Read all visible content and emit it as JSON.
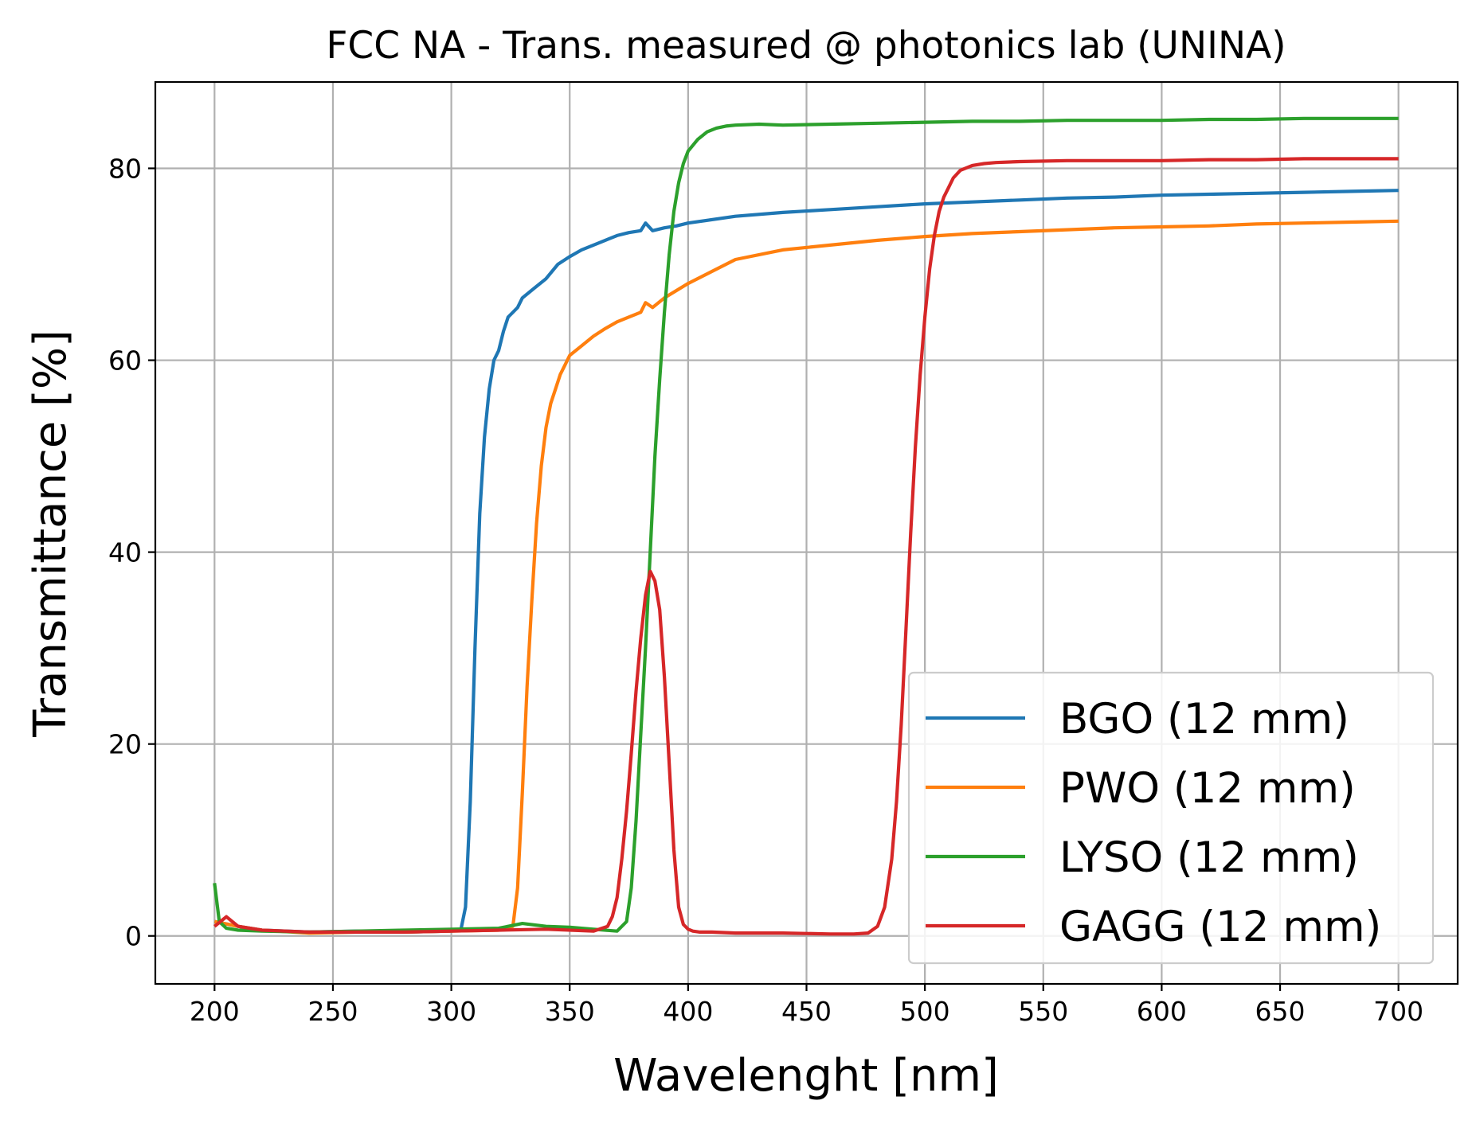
{
  "chart_data": {
    "type": "line",
    "title": "FCC NA - Trans. measured @ photonics lab (UNINA)",
    "xlabel": "Wavelenght [nm]",
    "ylabel": "Transmittance [%]",
    "xlim": [
      175,
      725
    ],
    "ylim": [
      -5,
      89
    ],
    "xticks": [
      200,
      250,
      300,
      350,
      400,
      450,
      500,
      550,
      600,
      650,
      700
    ],
    "yticks": [
      0,
      20,
      40,
      60,
      80
    ],
    "grid": true,
    "legend_position": "lower right",
    "series": [
      {
        "name": "BGO (12 mm)",
        "color": "#1f77b4",
        "x": [
          200,
          210,
          220,
          240,
          260,
          280,
          300,
          304,
          306,
          308,
          310,
          312,
          314,
          316,
          318,
          320,
          322,
          324,
          326,
          328,
          330,
          335,
          340,
          345,
          350,
          355,
          360,
          365,
          370,
          375,
          380,
          382,
          385,
          390,
          395,
          400,
          420,
          440,
          460,
          480,
          500,
          520,
          540,
          560,
          580,
          600,
          620,
          640,
          660,
          680,
          700
        ],
        "y": [
          1.5,
          1.0,
          0.6,
          0.4,
          0.5,
          0.4,
          0.5,
          0.6,
          3.0,
          14.0,
          30.0,
          44.0,
          52.0,
          57.0,
          60.0,
          61.0,
          63.0,
          64.5,
          65.0,
          65.5,
          66.5,
          67.5,
          68.5,
          70.0,
          70.8,
          71.5,
          72.0,
          72.5,
          73.0,
          73.3,
          73.5,
          74.3,
          73.5,
          73.8,
          74.0,
          74.3,
          75.0,
          75.4,
          75.7,
          76.0,
          76.3,
          76.5,
          76.7,
          76.9,
          77.0,
          77.2,
          77.3,
          77.4,
          77.5,
          77.6,
          77.7
        ]
      },
      {
        "name": "PWO (12 mm)",
        "color": "#ff7f0e",
        "x": [
          200,
          210,
          220,
          240,
          260,
          280,
          300,
          320,
          326,
          328,
          330,
          332,
          334,
          336,
          338,
          340,
          342,
          344,
          346,
          348,
          350,
          355,
          360,
          365,
          370,
          375,
          380,
          382,
          385,
          390,
          400,
          420,
          440,
          460,
          480,
          500,
          520,
          540,
          560,
          580,
          600,
          620,
          640,
          660,
          680,
          700
        ],
        "y": [
          1.5,
          1.0,
          0.6,
          0.3,
          0.4,
          0.4,
          0.5,
          0.6,
          1.0,
          5.0,
          15.0,
          26.0,
          35.0,
          43.0,
          49.0,
          53.0,
          55.5,
          57.0,
          58.5,
          59.5,
          60.5,
          61.5,
          62.5,
          63.3,
          64.0,
          64.5,
          65.0,
          66.0,
          65.5,
          66.5,
          68.0,
          70.5,
          71.5,
          72.0,
          72.5,
          72.9,
          73.2,
          73.4,
          73.6,
          73.8,
          73.9,
          74.0,
          74.2,
          74.3,
          74.4,
          74.5
        ]
      },
      {
        "name": "LYSO (12 mm)",
        "color": "#2ca02c",
        "x": [
          200,
          202,
          205,
          210,
          220,
          240,
          260,
          280,
          300,
          320,
          330,
          340,
          350,
          360,
          370,
          374,
          376,
          378,
          380,
          382,
          384,
          386,
          388,
          390,
          392,
          394,
          396,
          398,
          400,
          404,
          408,
          412,
          416,
          420,
          430,
          440,
          460,
          480,
          500,
          520,
          540,
          560,
          580,
          600,
          620,
          640,
          660,
          680,
          700
        ],
        "y": [
          5.5,
          1.5,
          0.8,
          0.6,
          0.5,
          0.4,
          0.5,
          0.6,
          0.7,
          0.8,
          1.3,
          1.0,
          0.9,
          0.7,
          0.5,
          1.5,
          5.0,
          12.0,
          21.0,
          30.0,
          40.0,
          50.0,
          58.0,
          65.0,
          71.0,
          75.5,
          78.5,
          80.5,
          81.8,
          83.0,
          83.8,
          84.2,
          84.4,
          84.5,
          84.6,
          84.5,
          84.6,
          84.7,
          84.8,
          84.9,
          84.9,
          85.0,
          85.0,
          85.0,
          85.1,
          85.1,
          85.2,
          85.2,
          85.2
        ]
      },
      {
        "name": "GAGG (12 mm)",
        "color": "#d62728",
        "x": [
          200,
          205,
          210,
          220,
          240,
          260,
          280,
          300,
          320,
          340,
          360,
          366,
          368,
          370,
          372,
          374,
          376,
          378,
          380,
          382,
          384,
          386,
          388,
          390,
          392,
          394,
          396,
          398,
          400,
          402,
          405,
          410,
          420,
          440,
          460,
          470,
          476,
          480,
          483,
          486,
          488,
          490,
          492,
          494,
          496,
          498,
          500,
          502,
          504,
          506,
          508,
          510,
          512,
          515,
          520,
          525,
          530,
          540,
          560,
          580,
          600,
          620,
          640,
          660,
          680,
          700
        ],
        "y": [
          1.0,
          2.0,
          1.0,
          0.6,
          0.4,
          0.4,
          0.4,
          0.5,
          0.6,
          0.7,
          0.5,
          1.0,
          2.0,
          4.0,
          8.0,
          13.0,
          19.0,
          25.5,
          31.0,
          35.5,
          38.0,
          37.0,
          34.0,
          27.0,
          18.0,
          9.0,
          3.0,
          1.2,
          0.7,
          0.5,
          0.4,
          0.4,
          0.3,
          0.3,
          0.2,
          0.2,
          0.3,
          1.0,
          3.0,
          8.0,
          14.0,
          22.0,
          32.0,
          42.0,
          51.0,
          58.5,
          64.5,
          69.5,
          73.0,
          75.5,
          77.0,
          78.0,
          79.0,
          79.8,
          80.3,
          80.5,
          80.6,
          80.7,
          80.8,
          80.8,
          80.8,
          80.9,
          80.9,
          81.0,
          81.0,
          81.0
        ]
      }
    ]
  }
}
